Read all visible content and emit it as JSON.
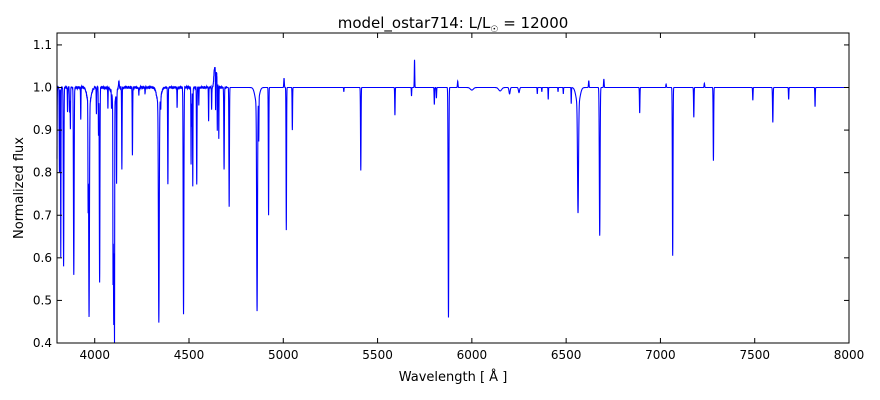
{
  "chart_data": {
    "type": "line",
    "title_main": "model_ostar714: L/L",
    "title_sub": "☉",
    "title_tail": " = 12000",
    "xlabel": "Wavelength [ Å ]",
    "ylabel": "Normalized flux",
    "xlim": [
      3800,
      8000
    ],
    "ylim": [
      0.4,
      1.128
    ],
    "xticks": [
      4000,
      4500,
      5000,
      5500,
      6000,
      6500,
      7000,
      7500,
      8000
    ],
    "yticks": [
      0.4,
      0.5,
      0.6,
      0.7,
      0.8,
      0.9,
      1.0,
      1.1
    ],
    "grid": false,
    "series_color": "#0000ff",
    "continuum": 1.0,
    "lines": [
      [
        3798,
        0.4,
        1.5
      ],
      [
        3813,
        0.2,
        1.2
      ],
      [
        3820,
        0.4,
        1.0
      ],
      [
        3835,
        0.42,
        1.6
      ],
      [
        3856,
        0.06,
        1
      ],
      [
        3867,
        0.06,
        1.2
      ],
      [
        3871,
        0.1,
        1
      ],
      [
        3889,
        0.44,
        1.8
      ],
      [
        3926,
        0.075,
        1
      ],
      [
        3965,
        0.24,
        1
      ],
      [
        3970,
        0.5,
        2.0
      ],
      [
        4009,
        0.06,
        1
      ],
      [
        4020,
        0.11,
        1
      ],
      [
        4026,
        0.46,
        1.6
      ],
      [
        4070,
        0.05,
        1
      ],
      [
        4089,
        0.05,
        1
      ],
      [
        4097,
        0.33,
        0.8
      ],
      [
        4101,
        0.515,
        2.2
      ],
      [
        4105,
        0.47,
        0.8
      ],
      [
        4116,
        0.21,
        1
      ],
      [
        4144,
        0.19,
        1.2
      ],
      [
        4200,
        0.16,
        1.2
      ],
      [
        4234,
        0.02,
        1
      ],
      [
        4267,
        0.015,
        1
      ],
      [
        4340,
        0.51,
        2.2
      ],
      [
        4350,
        0.03,
        1
      ],
      [
        4388,
        0.23,
        1.3
      ],
      [
        4437,
        0.05,
        1
      ],
      [
        4471,
        0.53,
        1.8
      ],
      [
        4511,
        0.18,
        1
      ],
      [
        4515,
        0.09,
        1
      ],
      [
        4520,
        0.23,
        1
      ],
      [
        4541,
        0.23,
        1.3
      ],
      [
        4552,
        0.04,
        1
      ],
      [
        4604,
        0.08,
        1
      ],
      [
        4620,
        0.05,
        1
      ],
      [
        4641,
        0.1,
        0.8
      ],
      [
        4650,
        0.12,
        0.8
      ],
      [
        4658,
        0.12,
        0.8
      ],
      [
        4686,
        0.195,
        1.4
      ],
      [
        4713,
        0.28,
        1.4
      ],
      [
        4861,
        0.485,
        2.2
      ],
      [
        4870,
        0.1,
        1
      ],
      [
        4922,
        0.3,
        1.3
      ],
      [
        5016,
        0.335,
        1.3
      ],
      [
        5048,
        0.1,
        1.2
      ],
      [
        5321,
        0.01,
        1
      ],
      [
        5411,
        0.195,
        1.4
      ],
      [
        5592,
        0.065,
        1.2
      ],
      [
        5680,
        0.02,
        1
      ],
      [
        5801,
        0.04,
        1.2
      ],
      [
        5812,
        0.025,
        1.2
      ],
      [
        5876,
        0.54,
        1.8
      ],
      [
        6000,
        0.006,
        8
      ],
      [
        6150,
        0.008,
        8
      ],
      [
        6200,
        0.015,
        3
      ],
      [
        6250,
        0.012,
        3
      ],
      [
        6347,
        0.015,
        1
      ],
      [
        6371,
        0.01,
        1
      ],
      [
        6405,
        0.028,
        1
      ],
      [
        6457,
        0.01,
        1
      ],
      [
        6485,
        0.015,
        1
      ],
      [
        6527,
        0.038,
        1
      ],
      [
        6563,
        0.255,
        2.6
      ],
      [
        6678,
        0.348,
        2.0
      ],
      [
        6890,
        0.06,
        1.3
      ],
      [
        7065,
        0.395,
        1.6
      ],
      [
        7177,
        0.07,
        1.3
      ],
      [
        7281,
        0.172,
        1.4
      ],
      [
        7490,
        0.03,
        1.2
      ],
      [
        7596,
        0.082,
        1.5
      ],
      [
        7680,
        0.028,
        1.2
      ],
      [
        7820,
        0.045,
        1.2
      ]
    ],
    "emission": [
      [
        4089,
        0.02,
        2
      ],
      [
        4128,
        0.015,
        2
      ],
      [
        4634,
        0.035,
        3
      ],
      [
        4640,
        0.04,
        3
      ],
      [
        4647,
        0.03,
        3
      ],
      [
        5004,
        0.022,
        1.5
      ],
      [
        5696,
        0.065,
        1.2
      ],
      [
        5925,
        0.015,
        1.5
      ],
      [
        6620,
        0.016,
        1.5
      ],
      [
        6700,
        0.02,
        1.5
      ],
      [
        7030,
        0.008,
        1.5
      ],
      [
        7233,
        0.01,
        1.5
      ]
    ]
  }
}
